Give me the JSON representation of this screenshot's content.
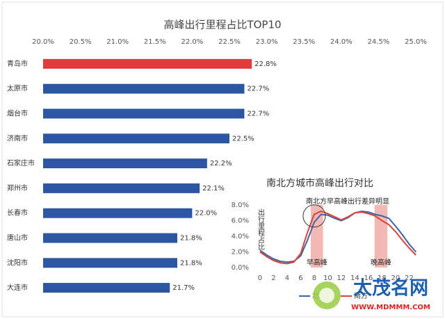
{
  "chart_data": [
    {
      "type": "bar",
      "orientation": "horizontal",
      "title": "高峰出行里程占比TOP10",
      "categories": [
        "青岛市",
        "太原市",
        "烟台市",
        "济南市",
        "石家庄市",
        "郑州市",
        "长春市",
        "唐山市",
        "沈阳市",
        "大连市"
      ],
      "values": [
        22.8,
        22.7,
        22.7,
        22.5,
        22.2,
        22.1,
        22.0,
        21.8,
        21.8,
        21.7
      ],
      "value_labels": [
        "22.8%",
        "22.7%",
        "22.7%",
        "22.5%",
        "22.2%",
        "22.1%",
        "22.0%",
        "21.8%",
        "21.8%",
        "21.7%"
      ],
      "colors": [
        "#e23b3b",
        "#2c55a2",
        "#2c55a2",
        "#2c55a2",
        "#2c55a2",
        "#2c55a2",
        "#2c55a2",
        "#2c55a2",
        "#2c55a2",
        "#2c55a2"
      ],
      "xlim": [
        20,
        25
      ],
      "xticks": [
        {
          "value": 20,
          "label": "20.0%"
        },
        {
          "value": 20.5,
          "label": "20.5%"
        },
        {
          "value": 21,
          "label": "21.0%"
        },
        {
          "value": 21.5,
          "label": "21.5%"
        },
        {
          "value": 22,
          "label": "22.0%"
        },
        {
          "value": 22.5,
          "label": "22.5%"
        },
        {
          "value": 23,
          "label": "23.0%"
        },
        {
          "value": 23.5,
          "label": "23.5%"
        },
        {
          "value": 24,
          "label": "24.0%"
        },
        {
          "value": 24.5,
          "label": "24.5%"
        },
        {
          "value": 25,
          "label": "25.0%"
        }
      ]
    },
    {
      "type": "line",
      "title": "南北方城市高峰出行对比",
      "ylabel": "出行里程占比",
      "annotation": "南北方早高峰出行差异明显",
      "x": [
        0,
        1,
        2,
        3,
        4,
        5,
        6,
        7,
        8,
        9,
        10,
        11,
        12,
        13,
        14,
        15,
        16,
        17,
        18,
        19,
        20,
        21,
        22,
        23
      ],
      "series": [
        {
          "name": "北方",
          "color": "#3c63a8",
          "values": [
            2.2,
            1.6,
            1.1,
            0.8,
            0.7,
            0.8,
            1.5,
            3.5,
            5.8,
            6.8,
            6.7,
            6.3,
            6.0,
            6.4,
            7.0,
            7.2,
            7.1,
            6.8,
            6.6,
            6.3,
            5.3,
            4.2,
            3.0,
            2.0
          ]
        },
        {
          "name": "南方",
          "color": "#d9423c",
          "values": [
            2.0,
            1.4,
            0.9,
            0.6,
            0.5,
            0.7,
            1.8,
            4.5,
            6.8,
            7.2,
            6.9,
            6.5,
            6.1,
            6.5,
            7.0,
            7.1,
            6.9,
            6.6,
            6.0,
            5.5,
            4.6,
            3.5,
            2.5,
            1.6
          ]
        }
      ],
      "highlights": [
        {
          "label": "早高峰",
          "xrange": [
            7.5,
            9.3
          ]
        },
        {
          "label": "晚高峰",
          "xrange": [
            16.9,
            18.8
          ]
        }
      ],
      "highlight_color": "#f2b8b3",
      "xlim": [
        -0.3,
        23.6
      ],
      "xticks": [
        0,
        2,
        4,
        6,
        8,
        10,
        12,
        14,
        16,
        18,
        20,
        22
      ],
      "ylim": [
        0,
        8
      ],
      "yticks": [
        {
          "value": 0,
          "label": "0.0%"
        },
        {
          "value": 2,
          "label": "2.0%"
        },
        {
          "value": 4,
          "label": "4.0%"
        },
        {
          "value": 6,
          "label": "6.0%"
        },
        {
          "value": 8,
          "label": "8.0%"
        }
      ]
    }
  ],
  "logo": {
    "name": "太茂名网",
    "url": "WWW.MDMMM.COM"
  }
}
